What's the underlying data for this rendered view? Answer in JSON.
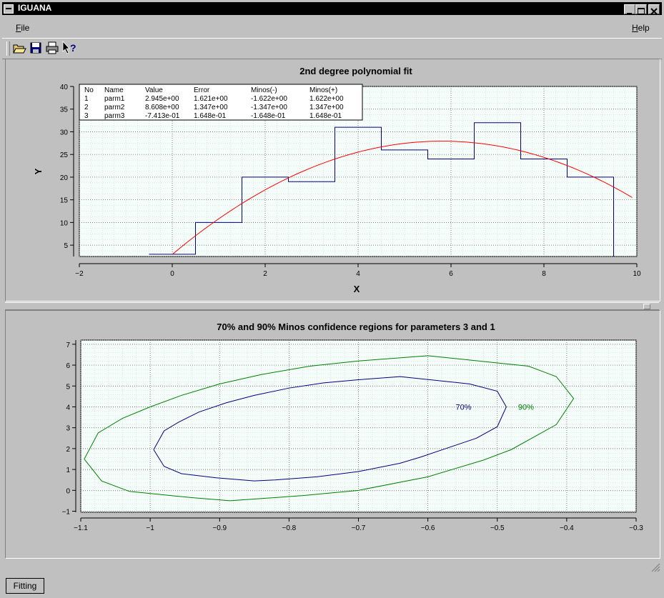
{
  "app": {
    "title": "IGUANA"
  },
  "menu": {
    "file_label": "File",
    "file_underline": "F",
    "file_rest": "ile",
    "help_label": "Help",
    "help_underline": "H",
    "help_rest": "elp"
  },
  "toolbar": {
    "icons": [
      "open-folder-icon",
      "save-disk-icon",
      "print-icon",
      "whats-this-help-icon"
    ]
  },
  "tabs": [
    {
      "label": "Fitting"
    }
  ],
  "colors": {
    "histogram": "#000080",
    "fit_curve": "#ff0000",
    "contour_70": "#000080",
    "contour_90": "#008000",
    "plot_bg": "#f5fdfa"
  },
  "fit_table": {
    "headers": [
      "No",
      "Name",
      "Value",
      "Error",
      "Minos(-)",
      "Minos(+)"
    ],
    "rows": [
      [
        "1",
        "parm1",
        "2.945e+00",
        "1.621e+00",
        "-1.622e+00",
        "1.622e+00"
      ],
      [
        "2",
        "parm2",
        "8.608e+00",
        "1.347e+00",
        "-1.347e+00",
        "1.347e+00"
      ],
      [
        "3",
        "parm3",
        "-7.413e-01",
        "1.648e-01",
        "-1.648e-01",
        "1.648e-01"
      ]
    ]
  },
  "chart_data": [
    {
      "type": "line",
      "title": "2nd degree polynomial fit",
      "xlabel": "X",
      "ylabel": "Y",
      "xlim": [
        -2,
        10
      ],
      "ylim": [
        2.5,
        40
      ],
      "x_ticks": [
        -2,
        0,
        2,
        4,
        6,
        8,
        10
      ],
      "y_ticks": [
        5,
        10,
        15,
        20,
        25,
        30,
        35,
        40
      ],
      "grid": true,
      "histogram": {
        "bin_edges": [
          -0.5,
          0.5,
          1.5,
          2.5,
          3.5,
          4.5,
          5.5,
          6.5,
          7.5,
          8.5,
          9.5
        ],
        "values": [
          3,
          10,
          20,
          19,
          31,
          26,
          24,
          32,
          24,
          20
        ]
      },
      "fit_curve": {
        "x_range": [
          0,
          9.9
        ],
        "coefficients": [
          2.945,
          8.608,
          -0.7413
        ]
      }
    },
    {
      "type": "line",
      "title": "70% and 90% Minos confidence regions for parameters 3 and 1",
      "xlim": [
        -1.1,
        -0.3
      ],
      "ylim": [
        -1.05,
        7.2
      ],
      "x_ticks": [
        -1.1,
        -1,
        -0.9,
        -0.8,
        -0.7,
        -0.6,
        -0.5,
        -0.4,
        -0.3
      ],
      "y_ticks": [
        -1,
        0,
        1,
        2,
        3,
        4,
        5,
        6,
        7
      ],
      "grid": true,
      "series": [
        {
          "name": "70%",
          "points": [
            [
              -0.995,
              1.95
            ],
            [
              -0.98,
              2.85
            ],
            [
              -0.96,
              3.25
            ],
            [
              -0.93,
              3.75
            ],
            [
              -0.89,
              4.2
            ],
            [
              -0.85,
              4.55
            ],
            [
              -0.8,
              4.9
            ],
            [
              -0.75,
              5.15
            ],
            [
              -0.7,
              5.3
            ],
            [
              -0.64,
              5.45
            ],
            [
              -0.54,
              5.1
            ],
            [
              -0.5,
              4.75
            ],
            [
              -0.487,
              4.0
            ],
            [
              -0.5,
              3.05
            ],
            [
              -0.53,
              2.5
            ],
            [
              -0.57,
              2.05
            ],
            [
              -0.61,
              1.6
            ],
            [
              -0.64,
              1.3
            ],
            [
              -0.7,
              0.9
            ],
            [
              -0.76,
              0.65
            ],
            [
              -0.82,
              0.5
            ],
            [
              -0.85,
              0.45
            ],
            [
              -0.905,
              0.6
            ],
            [
              -0.955,
              0.8
            ],
            [
              -0.98,
              1.15
            ],
            [
              -0.995,
              1.95
            ]
          ]
        },
        {
          "name": "90%",
          "points": [
            [
              -1.095,
              1.5
            ],
            [
              -1.075,
              2.75
            ],
            [
              -1.04,
              3.45
            ],
            [
              -1.0,
              4.0
            ],
            [
              -0.955,
              4.55
            ],
            [
              -0.9,
              5.1
            ],
            [
              -0.84,
              5.55
            ],
            [
              -0.77,
              5.95
            ],
            [
              -0.7,
              6.2
            ],
            [
              -0.6,
              6.45
            ],
            [
              -0.455,
              5.95
            ],
            [
              -0.415,
              5.45
            ],
            [
              -0.39,
              4.4
            ],
            [
              -0.415,
              3.15
            ],
            [
              -0.48,
              1.95
            ],
            [
              -0.52,
              1.45
            ],
            [
              -0.6,
              0.65
            ],
            [
              -0.7,
              0.0
            ],
            [
              -0.78,
              -0.25
            ],
            [
              -0.885,
              -0.5
            ],
            [
              -0.94,
              -0.35
            ],
            [
              -1.03,
              -0.05
            ],
            [
              -1.07,
              0.45
            ],
            [
              -1.095,
              1.5
            ]
          ]
        }
      ],
      "annotations": [
        {
          "text": "70%",
          "x": -0.56,
          "y": 4.0
        },
        {
          "text": "90%",
          "x": -0.47,
          "y": 4.0
        }
      ]
    }
  ]
}
